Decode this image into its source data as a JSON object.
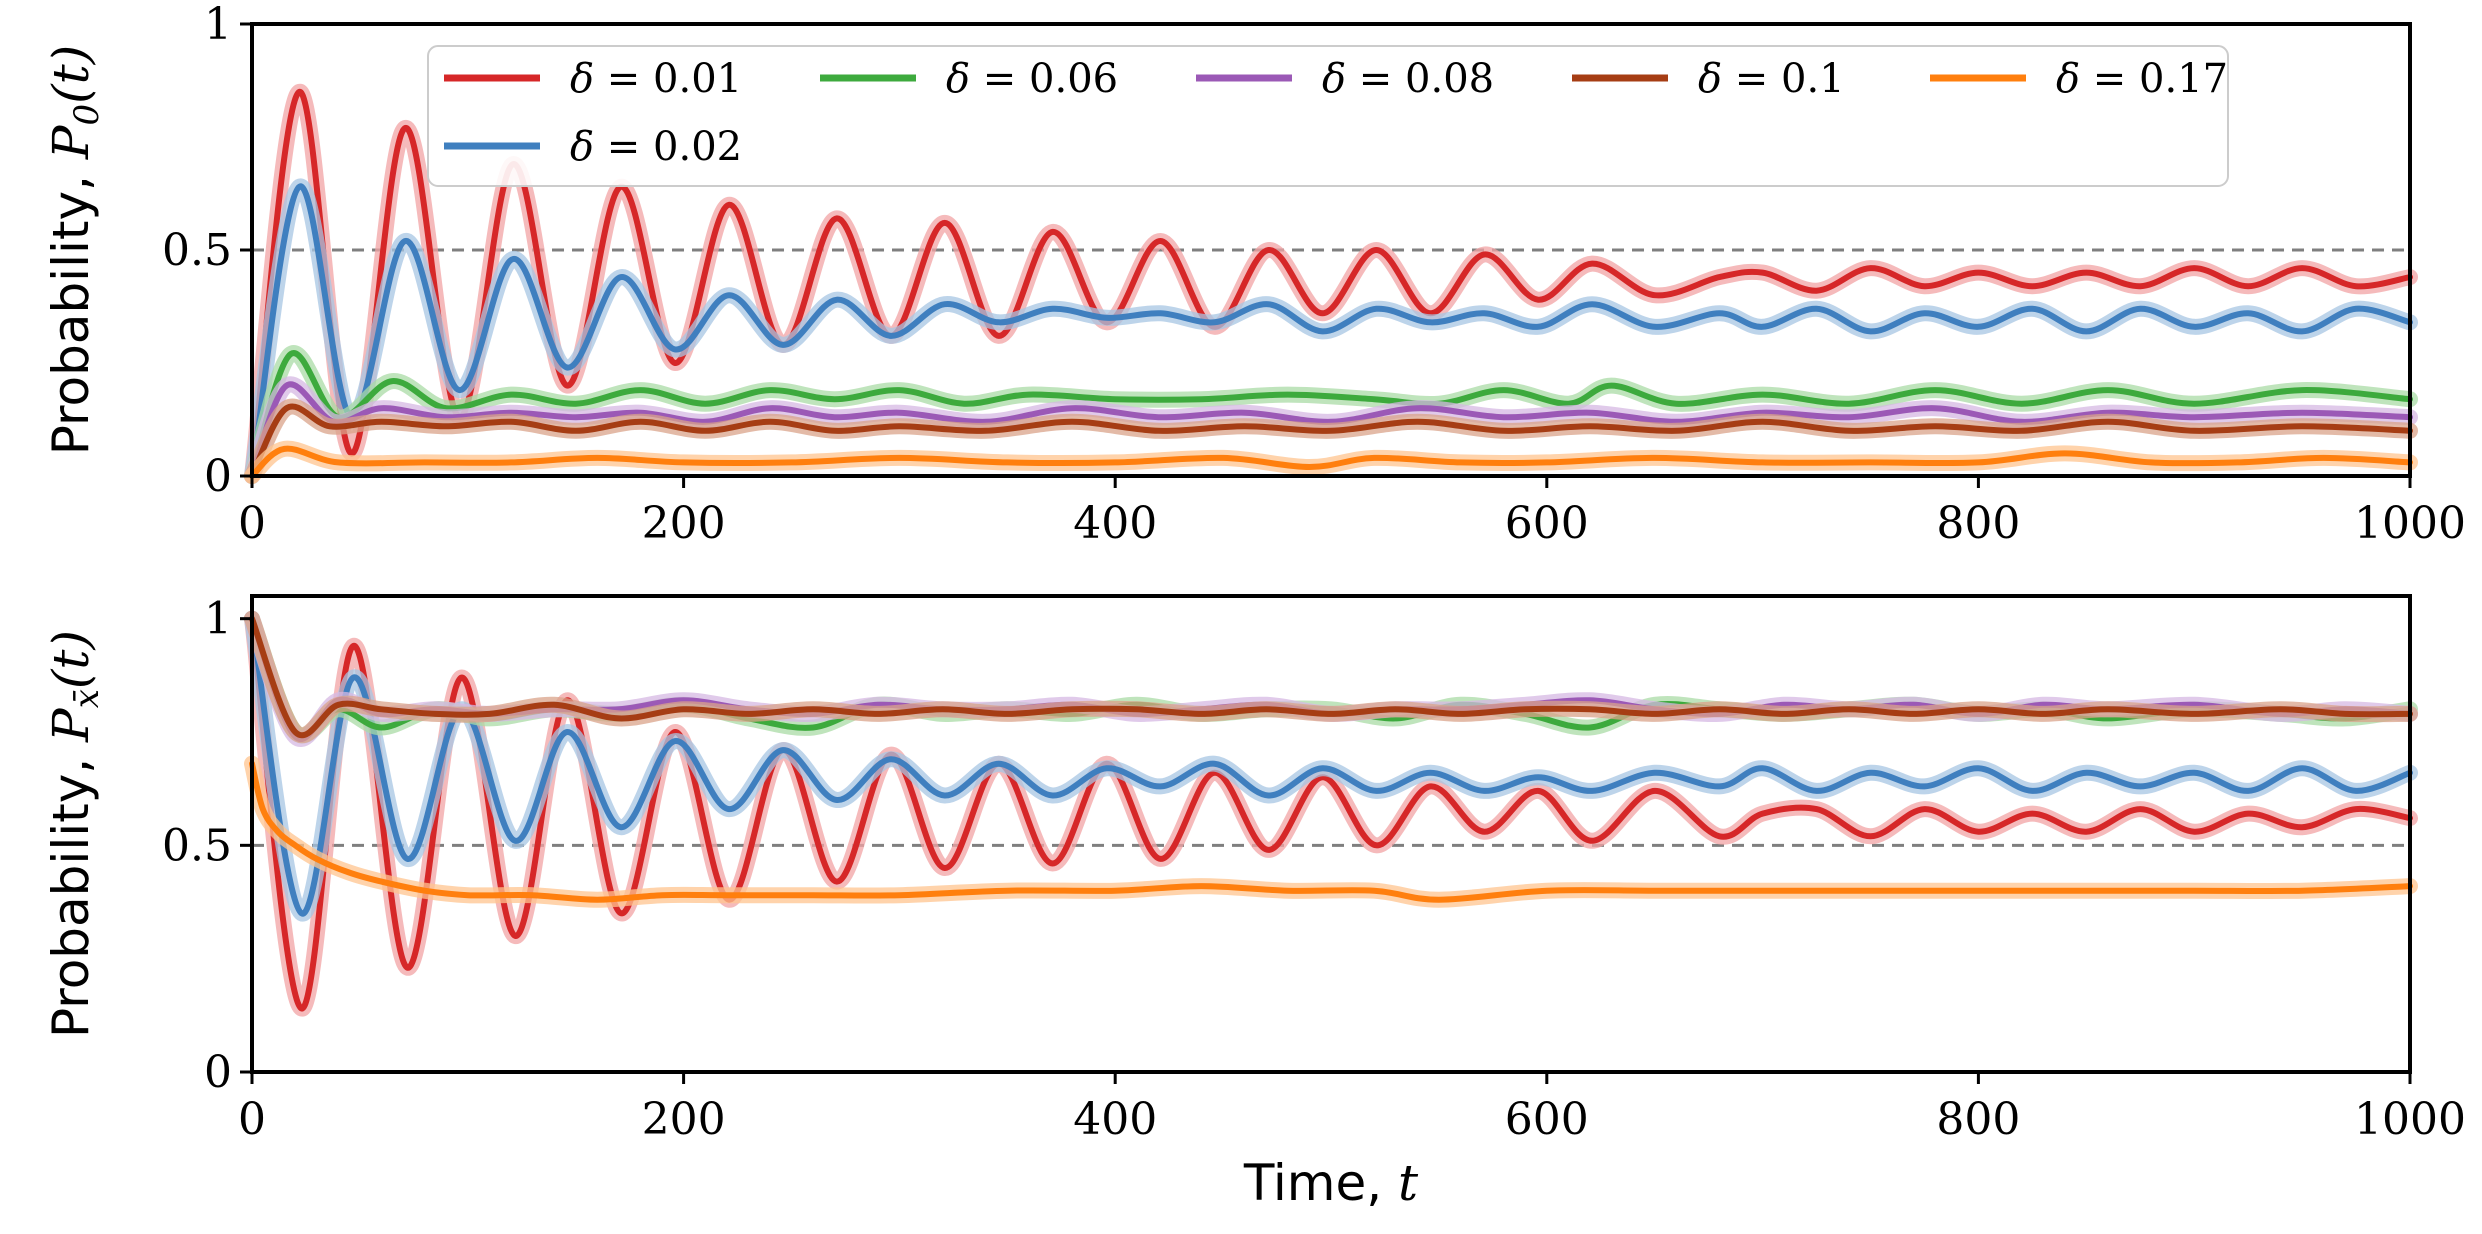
{
  "chart_data": [
    {
      "type": "line",
      "panel": "top",
      "xlabel": "",
      "ylabel": "Probability, P_0(t)",
      "ylabel_prefix": "Probability, ",
      "ylabel_symbol": "P",
      "ylabel_subscript": "0",
      "ylabel_arg": "(t)",
      "xlim": [
        0,
        1000
      ],
      "ylim": [
        0,
        1
      ],
      "xticks": [
        0,
        200,
        400,
        600,
        800,
        1000
      ],
      "xtick_labels": [
        "0",
        "200",
        "400",
        "600",
        "800",
        "1000"
      ],
      "yticks": [
        0,
        0.5,
        1
      ],
      "ytick_labels": [
        "0",
        "0.5",
        "1"
      ],
      "reference_line": 0.5,
      "legend": "top (inside, 5 columns)",
      "series": [
        {
          "name": "δ = 0.01",
          "delta": "0.01",
          "color": "#d62728",
          "band": "#f2a3a4",
          "x": [
            0,
            22,
            46,
            71,
            96,
            121,
            146,
            171,
            196,
            221,
            246,
            271,
            296,
            321,
            346,
            371,
            396,
            421,
            446,
            471,
            496,
            521,
            546,
            571,
            596,
            621,
            650,
            680,
            700,
            725,
            750,
            775,
            800,
            825,
            850,
            875,
            900,
            925,
            950,
            975,
            1000
          ],
          "y": [
            0,
            0.85,
            0.05,
            0.77,
            0.13,
            0.69,
            0.2,
            0.64,
            0.25,
            0.6,
            0.29,
            0.57,
            0.31,
            0.56,
            0.31,
            0.54,
            0.34,
            0.52,
            0.33,
            0.5,
            0.36,
            0.5,
            0.36,
            0.49,
            0.39,
            0.47,
            0.4,
            0.44,
            0.45,
            0.41,
            0.46,
            0.42,
            0.45,
            0.42,
            0.45,
            0.42,
            0.46,
            0.42,
            0.46,
            0.42,
            0.44
          ]
        },
        {
          "name": "δ = 0.02",
          "delta": "0.02",
          "color": "#3f7fbf",
          "band": "#a7c6e3",
          "x": [
            0,
            22,
            46,
            71,
            96,
            121,
            146,
            171,
            196,
            221,
            246,
            271,
            296,
            321,
            346,
            371,
            396,
            421,
            446,
            471,
            496,
            521,
            546,
            571,
            596,
            621,
            650,
            680,
            700,
            725,
            750,
            775,
            800,
            825,
            850,
            875,
            900,
            925,
            950,
            975,
            1000
          ],
          "y": [
            0,
            0.64,
            0.13,
            0.52,
            0.19,
            0.48,
            0.24,
            0.44,
            0.28,
            0.4,
            0.29,
            0.39,
            0.31,
            0.38,
            0.34,
            0.37,
            0.35,
            0.36,
            0.34,
            0.38,
            0.32,
            0.37,
            0.34,
            0.36,
            0.33,
            0.38,
            0.33,
            0.36,
            0.33,
            0.37,
            0.32,
            0.36,
            0.33,
            0.37,
            0.32,
            0.37,
            0.33,
            0.36,
            0.32,
            0.37,
            0.34
          ]
        },
        {
          "name": "δ = 0.06",
          "delta": "0.06",
          "color": "#3daa3d",
          "band": "#a9dba6",
          "x": [
            0,
            18,
            40,
            65,
            90,
            120,
            150,
            180,
            210,
            240,
            270,
            300,
            330,
            360,
            400,
            440,
            480,
            520,
            550,
            580,
            610,
            630,
            660,
            700,
            740,
            780,
            820,
            860,
            900,
            950,
            1000
          ],
          "y": [
            0,
            0.27,
            0.13,
            0.21,
            0.15,
            0.18,
            0.16,
            0.19,
            0.16,
            0.19,
            0.17,
            0.19,
            0.16,
            0.18,
            0.17,
            0.17,
            0.18,
            0.17,
            0.16,
            0.19,
            0.16,
            0.2,
            0.16,
            0.18,
            0.16,
            0.19,
            0.16,
            0.19,
            0.16,
            0.19,
            0.17
          ]
        },
        {
          "name": "δ = 0.08",
          "delta": "0.08",
          "color": "#9b59b6",
          "band": "#d6b8e3",
          "x": [
            0,
            16,
            38,
            60,
            90,
            120,
            150,
            180,
            210,
            240,
            270,
            300,
            340,
            380,
            420,
            460,
            500,
            540,
            580,
            620,
            660,
            700,
            740,
            780,
            820,
            860,
            900,
            950,
            1000
          ],
          "y": [
            0,
            0.2,
            0.12,
            0.15,
            0.13,
            0.14,
            0.13,
            0.14,
            0.12,
            0.15,
            0.13,
            0.14,
            0.12,
            0.15,
            0.13,
            0.14,
            0.12,
            0.15,
            0.13,
            0.14,
            0.12,
            0.14,
            0.13,
            0.15,
            0.12,
            0.14,
            0.13,
            0.14,
            0.13
          ]
        },
        {
          "name": "δ = 0.1",
          "delta": "0.1",
          "color": "#a63d14",
          "band": "#d9a38a",
          "x": [
            0,
            16,
            36,
            60,
            90,
            120,
            150,
            180,
            210,
            240,
            270,
            300,
            340,
            380,
            420,
            460,
            500,
            540,
            580,
            620,
            660,
            700,
            740,
            780,
            820,
            860,
            900,
            950,
            1000
          ],
          "y": [
            0,
            0.15,
            0.11,
            0.12,
            0.11,
            0.12,
            0.1,
            0.12,
            0.1,
            0.12,
            0.1,
            0.11,
            0.1,
            0.12,
            0.1,
            0.11,
            0.1,
            0.12,
            0.1,
            0.11,
            0.1,
            0.12,
            0.1,
            0.11,
            0.1,
            0.12,
            0.1,
            0.11,
            0.1
          ]
        },
        {
          "name": "δ = 0.17",
          "delta": "0.17",
          "color": "#ff7f0e",
          "band": "#ffc48f",
          "x": [
            0,
            15,
            40,
            80,
            120,
            160,
            200,
            250,
            300,
            350,
            400,
            450,
            490,
            520,
            560,
            600,
            650,
            700,
            750,
            800,
            840,
            880,
            920,
            960,
            1000
          ],
          "y": [
            0,
            0.06,
            0.03,
            0.03,
            0.03,
            0.04,
            0.03,
            0.03,
            0.04,
            0.03,
            0.03,
            0.04,
            0.02,
            0.04,
            0.03,
            0.03,
            0.04,
            0.03,
            0.03,
            0.03,
            0.05,
            0.03,
            0.03,
            0.04,
            0.03
          ]
        }
      ]
    },
    {
      "type": "line",
      "panel": "bottom",
      "xlabel": "Time, t",
      "xlabel_prefix": "Time, ",
      "xlabel_symbol": "t",
      "ylabel": "Probability, P_x̄(t)",
      "ylabel_prefix": "Probability, ",
      "ylabel_symbol": "P",
      "ylabel_subscript": "x̄",
      "ylabel_arg": "(t)",
      "xlim": [
        0,
        1000
      ],
      "ylim": [
        0,
        1.05
      ],
      "xticks": [
        0,
        200,
        400,
        600,
        800,
        1000
      ],
      "xtick_labels": [
        "0",
        "200",
        "400",
        "600",
        "800",
        "1000"
      ],
      "yticks": [
        0,
        0.5,
        1
      ],
      "ytick_labels": [
        "0",
        "0.5",
        "1"
      ],
      "reference_line": 0.5,
      "series": [
        {
          "name": "δ = 0.01",
          "color": "#d62728",
          "band": "#f2a3a4",
          "x": [
            0,
            23,
            47,
            72,
            97,
            122,
            146,
            171,
            196,
            221,
            246,
            271,
            296,
            321,
            346,
            371,
            396,
            421,
            446,
            471,
            496,
            521,
            546,
            571,
            596,
            621,
            650,
            680,
            700,
            725,
            750,
            775,
            800,
            825,
            850,
            875,
            900,
            925,
            950,
            975,
            1000
          ],
          "y": [
            1.0,
            0.14,
            0.94,
            0.23,
            0.87,
            0.3,
            0.82,
            0.35,
            0.75,
            0.38,
            0.71,
            0.42,
            0.7,
            0.45,
            0.68,
            0.46,
            0.68,
            0.47,
            0.66,
            0.49,
            0.65,
            0.5,
            0.63,
            0.53,
            0.62,
            0.51,
            0.62,
            0.52,
            0.57,
            0.58,
            0.52,
            0.58,
            0.53,
            0.57,
            0.53,
            0.58,
            0.53,
            0.57,
            0.54,
            0.58,
            0.56
          ]
        },
        {
          "name": "δ = 0.02",
          "color": "#3f7fbf",
          "band": "#a7c6e3",
          "x": [
            0,
            23,
            47,
            72,
            97,
            122,
            146,
            171,
            196,
            221,
            246,
            271,
            296,
            321,
            346,
            371,
            396,
            421,
            446,
            471,
            496,
            521,
            546,
            571,
            596,
            621,
            650,
            680,
            700,
            725,
            750,
            775,
            800,
            825,
            850,
            875,
            900,
            925,
            950,
            975,
            1000
          ],
          "y": [
            1.0,
            0.35,
            0.87,
            0.47,
            0.8,
            0.51,
            0.75,
            0.54,
            0.73,
            0.58,
            0.71,
            0.6,
            0.69,
            0.61,
            0.68,
            0.61,
            0.67,
            0.63,
            0.68,
            0.61,
            0.67,
            0.62,
            0.66,
            0.62,
            0.65,
            0.62,
            0.66,
            0.63,
            0.67,
            0.62,
            0.66,
            0.63,
            0.67,
            0.62,
            0.66,
            0.63,
            0.66,
            0.62,
            0.67,
            0.62,
            0.66
          ]
        },
        {
          "name": "δ = 0.06",
          "color": "#3daa3d",
          "band": "#a9dba6",
          "x": [
            0,
            20,
            40,
            60,
            85,
            110,
            140,
            170,
            200,
            230,
            260,
            290,
            320,
            350,
            380,
            410,
            440,
            470,
            500,
            530,
            560,
            590,
            620,
            650,
            680,
            710,
            740,
            770,
            800,
            830,
            860,
            900,
            940,
            970,
            1000
          ],
          "y": [
            1.0,
            0.75,
            0.8,
            0.76,
            0.8,
            0.78,
            0.8,
            0.79,
            0.81,
            0.78,
            0.76,
            0.81,
            0.79,
            0.8,
            0.79,
            0.81,
            0.79,
            0.8,
            0.8,
            0.78,
            0.81,
            0.79,
            0.76,
            0.81,
            0.8,
            0.79,
            0.8,
            0.81,
            0.79,
            0.8,
            0.78,
            0.8,
            0.79,
            0.78,
            0.8
          ]
        },
        {
          "name": "δ = 0.08",
          "color": "#9b59b6",
          "band": "#d6b8e3",
          "x": [
            0,
            20,
            40,
            60,
            85,
            110,
            140,
            170,
            200,
            230,
            260,
            290,
            320,
            350,
            380,
            410,
            440,
            470,
            500,
            530,
            560,
            590,
            620,
            650,
            680,
            710,
            740,
            770,
            800,
            830,
            860,
            900,
            940,
            970,
            1000
          ],
          "y": [
            1.0,
            0.74,
            0.82,
            0.79,
            0.8,
            0.79,
            0.8,
            0.8,
            0.82,
            0.8,
            0.79,
            0.81,
            0.8,
            0.8,
            0.81,
            0.79,
            0.8,
            0.81,
            0.79,
            0.8,
            0.8,
            0.81,
            0.82,
            0.8,
            0.79,
            0.81,
            0.8,
            0.81,
            0.79,
            0.81,
            0.8,
            0.81,
            0.79,
            0.8,
            0.79
          ]
        },
        {
          "name": "δ = 0.1",
          "color": "#a63d14",
          "band": "#d9a38a",
          "x": [
            0,
            20,
            40,
            60,
            85,
            110,
            140,
            170,
            200,
            230,
            260,
            290,
            320,
            350,
            380,
            410,
            440,
            470,
            500,
            530,
            560,
            590,
            620,
            650,
            680,
            710,
            740,
            770,
            800,
            830,
            860,
            900,
            940,
            970,
            1000
          ],
          "y": [
            1.0,
            0.75,
            0.81,
            0.8,
            0.79,
            0.79,
            0.81,
            0.78,
            0.8,
            0.79,
            0.8,
            0.79,
            0.8,
            0.79,
            0.8,
            0.8,
            0.79,
            0.8,
            0.79,
            0.8,
            0.79,
            0.8,
            0.8,
            0.79,
            0.8,
            0.79,
            0.8,
            0.79,
            0.8,
            0.79,
            0.8,
            0.79,
            0.8,
            0.79,
            0.79
          ]
        },
        {
          "name": "δ = 0.17",
          "color": "#ff7f0e",
          "band": "#ffc48f",
          "x": [
            0,
            5,
            12,
            20,
            30,
            45,
            60,
            80,
            100,
            130,
            160,
            190,
            220,
            260,
            300,
            350,
            400,
            440,
            480,
            520,
            550,
            600,
            650,
            700,
            750,
            800,
            850,
            900,
            950,
            1000
          ],
          "y": [
            0.68,
            0.58,
            0.53,
            0.5,
            0.47,
            0.44,
            0.42,
            0.4,
            0.39,
            0.39,
            0.38,
            0.39,
            0.39,
            0.39,
            0.39,
            0.4,
            0.4,
            0.41,
            0.4,
            0.4,
            0.38,
            0.4,
            0.4,
            0.4,
            0.4,
            0.4,
            0.4,
            0.4,
            0.4,
            0.41
          ]
        }
      ]
    }
  ]
}
